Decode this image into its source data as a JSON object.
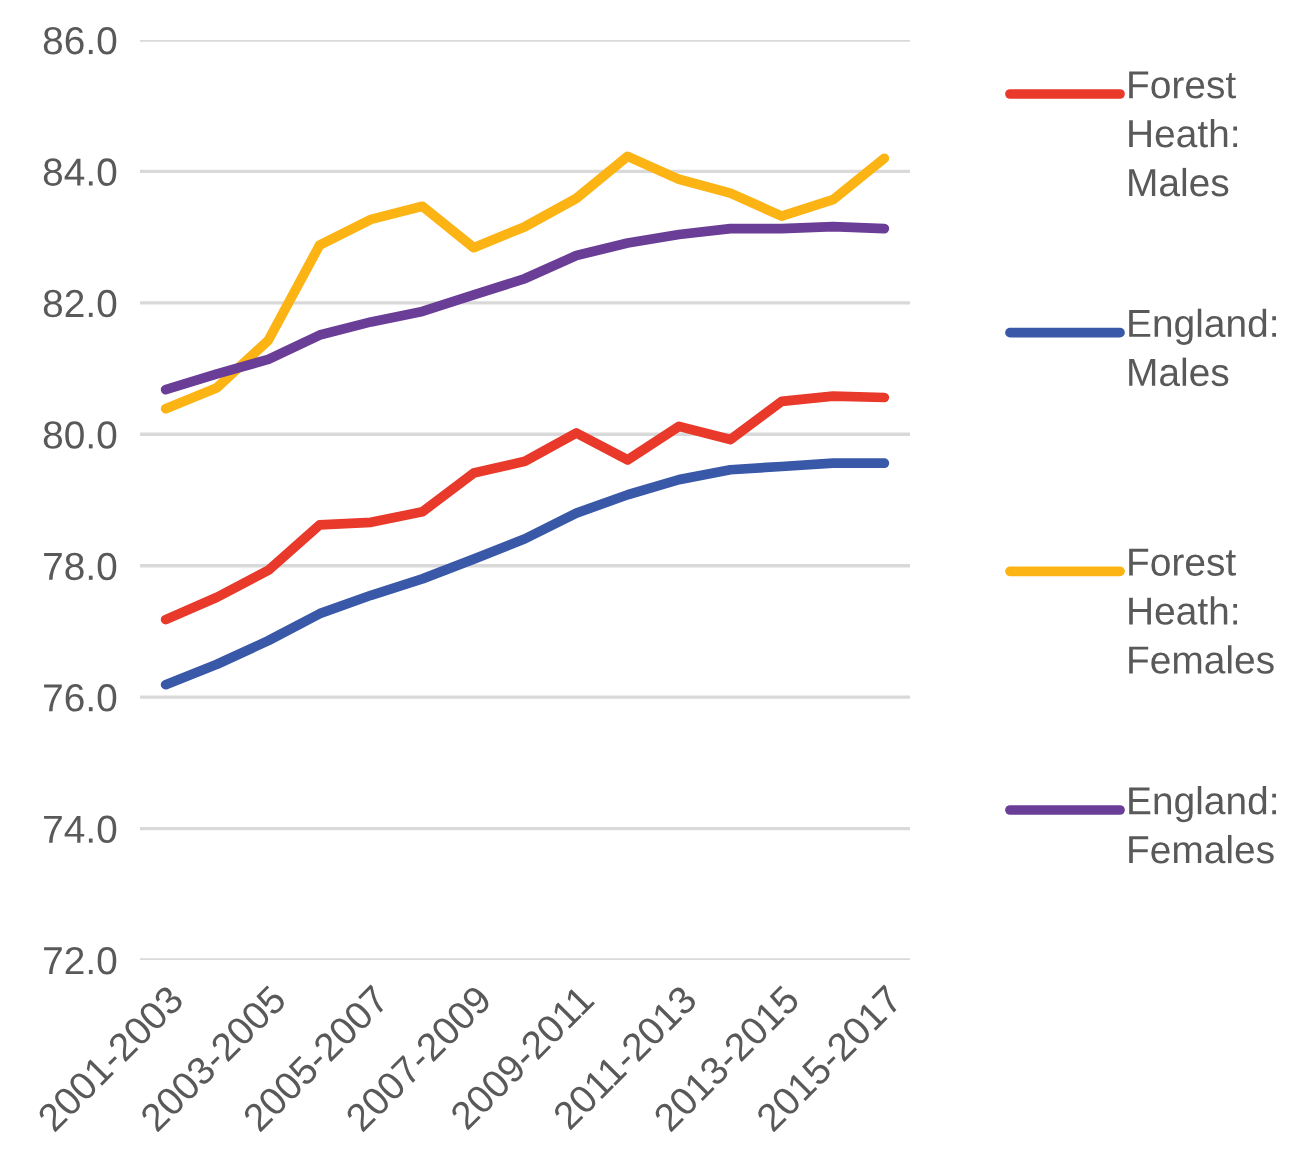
{
  "chart_data": {
    "type": "line",
    "categories": [
      "2001-2003",
      null,
      "2003-2005",
      null,
      "2005-2007",
      null,
      "2007-2009",
      null,
      "2009-2011",
      null,
      "2011-2013",
      null,
      "2013-2015",
      null,
      "2015-2017"
    ],
    "series": [
      {
        "name": "Forest Heath: Males",
        "color": "#e8392a",
        "values": [
          77.18,
          77.52,
          77.93,
          78.62,
          78.66,
          78.82,
          79.41,
          79.59,
          80.02,
          79.61,
          80.12,
          79.92,
          80.5,
          80.58,
          80.56
        ]
      },
      {
        "name": "England: Males",
        "color": "#3a58a8",
        "values": [
          76.19,
          76.5,
          76.86,
          77.27,
          77.55,
          77.8,
          78.1,
          78.41,
          78.8,
          79.08,
          79.31,
          79.46,
          79.51,
          79.56,
          79.56
        ]
      },
      {
        "name": "Forest Heath: Females",
        "color": "#fcb415",
        "values": [
          80.39,
          80.71,
          81.43,
          82.88,
          83.27,
          83.47,
          82.84,
          83.16,
          83.59,
          84.23,
          83.88,
          83.67,
          83.32,
          83.57,
          84.2
        ]
      },
      {
        "name": "England: Females",
        "color": "#6a3d97",
        "values": [
          80.68,
          80.92,
          81.14,
          81.51,
          81.71,
          81.87,
          82.12,
          82.37,
          82.72,
          82.91,
          83.04,
          83.13,
          83.13,
          83.16,
          83.13
        ]
      }
    ],
    "ylim": [
      72,
      86
    ],
    "yticks": [
      {
        "value": 72,
        "label": "72.0"
      },
      {
        "value": 74,
        "label": "74.0"
      },
      {
        "value": 76,
        "label": "76.0"
      },
      {
        "value": 78,
        "label": "78.0"
      },
      {
        "value": 80,
        "label": "80.0"
      },
      {
        "value": 82,
        "label": "82.0"
      },
      {
        "value": 84,
        "label": "84.0"
      },
      {
        "value": 86,
        "label": "86.0"
      }
    ],
    "grid": "y",
    "legend": "right",
    "marker": "none",
    "line_style": "solid"
  }
}
